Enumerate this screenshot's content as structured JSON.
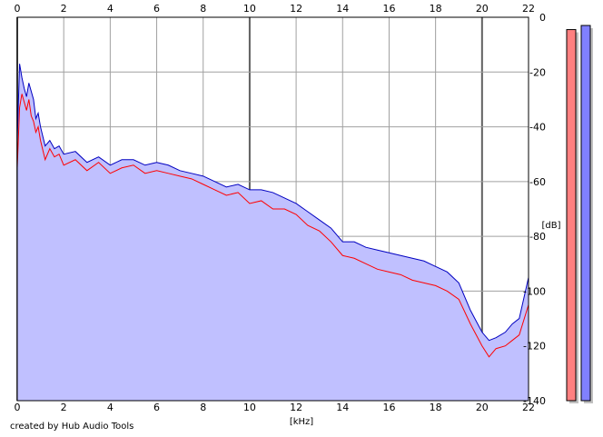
{
  "footer_text": "created by Hub Audio Tools",
  "chart_data": {
    "type": "area",
    "xlabel": "[kHz]",
    "ylabel": "[dB]",
    "xlim": [
      0,
      22
    ],
    "ylim": [
      -140,
      0
    ],
    "grid": true,
    "x_ticks": [
      0,
      2,
      4,
      6,
      8,
      10,
      12,
      14,
      16,
      18,
      20,
      22
    ],
    "y_ticks": [
      0,
      -20,
      -40,
      -60,
      -80,
      -100,
      -120,
      -140
    ],
    "y_tick_labels": [
      "0",
      "-20",
      "-40",
      "-60",
      "-80",
      "-100",
      "-120",
      "-140"
    ],
    "fill_color": "#c0c0ff",
    "series": [
      {
        "color": "#ff0000",
        "x": [
          0.0,
          0.1,
          0.2,
          0.3,
          0.4,
          0.5,
          0.6,
          0.7,
          0.8,
          0.9,
          1.0,
          1.2,
          1.4,
          1.6,
          1.8,
          2.0,
          2.5,
          3.0,
          3.5,
          4.0,
          4.5,
          5.0,
          5.5,
          6.0,
          6.5,
          7.0,
          7.5,
          8.0,
          8.5,
          9.0,
          9.5,
          10.0,
          10.5,
          11.0,
          11.5,
          12.0,
          12.5,
          13.0,
          13.5,
          14.0,
          14.5,
          15.0,
          15.5,
          16.0,
          16.5,
          17.0,
          17.5,
          18.0,
          18.5,
          19.0,
          19.5,
          20.0,
          20.3,
          20.6,
          21.0,
          21.3,
          21.6,
          22.0
        ],
        "y": [
          -55,
          -33,
          -28,
          -31,
          -34,
          -30,
          -36,
          -38,
          -42,
          -40,
          -45,
          -52,
          -48,
          -51,
          -50,
          -54,
          -52,
          -56,
          -53,
          -57,
          -55,
          -54,
          -57,
          -56,
          -57,
          -58,
          -59,
          -61,
          -63,
          -65,
          -64,
          -68,
          -67,
          -70,
          -70,
          -72,
          -76,
          -78,
          -82,
          -87,
          -88,
          -90,
          -92,
          -93,
          -94,
          -96,
          -97,
          -98,
          -100,
          -103,
          -112,
          -120,
          -124,
          -121,
          -120,
          -118,
          -116,
          -105
        ]
      },
      {
        "color": "#0000c0",
        "x": [
          0.0,
          0.1,
          0.2,
          0.3,
          0.4,
          0.5,
          0.6,
          0.7,
          0.8,
          0.9,
          1.0,
          1.2,
          1.4,
          1.6,
          1.8,
          2.0,
          2.5,
          3.0,
          3.5,
          4.0,
          4.5,
          5.0,
          5.5,
          6.0,
          6.5,
          7.0,
          7.5,
          8.0,
          8.5,
          9.0,
          9.5,
          10.0,
          10.5,
          11.0,
          11.5,
          12.0,
          12.5,
          13.0,
          13.5,
          14.0,
          14.5,
          15.0,
          15.5,
          16.0,
          16.5,
          17.0,
          17.5,
          18.0,
          18.5,
          19.0,
          19.5,
          20.0,
          20.3,
          20.6,
          21.0,
          21.3,
          21.6,
          22.0
        ],
        "y": [
          -45,
          -17,
          -22,
          -26,
          -29,
          -24,
          -27,
          -30,
          -37,
          -35,
          -40,
          -47,
          -45,
          -48,
          -47,
          -50,
          -49,
          -53,
          -51,
          -54,
          -52,
          -52,
          -54,
          -53,
          -54,
          -56,
          -57,
          -58,
          -60,
          -62,
          -61,
          -63,
          -63,
          -64,
          -66,
          -68,
          -71,
          -74,
          -77,
          -82,
          -82,
          -84,
          -85,
          -86,
          -87,
          -88,
          -89,
          -91,
          -93,
          -97,
          -107,
          -115,
          -118,
          -117,
          -115,
          -112,
          -110,
          -95
        ]
      }
    ],
    "level_meters": [
      {
        "color": "#ff8080",
        "level_db": -4.5
      },
      {
        "color": "#8080ff",
        "level_db": -3.0
      }
    ]
  }
}
